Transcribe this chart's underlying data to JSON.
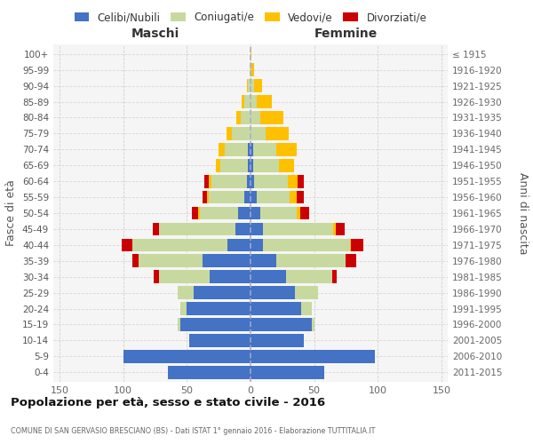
{
  "age_groups": [
    "0-4",
    "5-9",
    "10-14",
    "15-19",
    "20-24",
    "25-29",
    "30-34",
    "35-39",
    "40-44",
    "45-49",
    "50-54",
    "55-59",
    "60-64",
    "65-69",
    "70-74",
    "75-79",
    "80-84",
    "85-89",
    "90-94",
    "95-99",
    "100+"
  ],
  "birth_years": [
    "2011-2015",
    "2006-2010",
    "2001-2005",
    "1996-2000",
    "1991-1995",
    "1986-1990",
    "1981-1985",
    "1976-1980",
    "1971-1975",
    "1966-1970",
    "1961-1965",
    "1956-1960",
    "1951-1955",
    "1946-1950",
    "1941-1945",
    "1936-1940",
    "1931-1935",
    "1926-1930",
    "1921-1925",
    "1916-1920",
    "≤ 1915"
  ],
  "maschi": {
    "celibi": [
      65,
      100,
      48,
      55,
      50,
      45,
      32,
      38,
      18,
      12,
      10,
      5,
      3,
      2,
      2,
      0,
      0,
      0,
      0,
      0,
      0
    ],
    "coniugati": [
      0,
      0,
      0,
      2,
      5,
      12,
      40,
      50,
      75,
      60,
      30,
      28,
      28,
      22,
      18,
      15,
      8,
      5,
      2,
      1,
      0
    ],
    "vedovi": [
      0,
      0,
      0,
      0,
      0,
      0,
      0,
      0,
      0,
      0,
      1,
      1,
      2,
      3,
      5,
      4,
      3,
      2,
      1,
      0,
      0
    ],
    "divorziati": [
      0,
      0,
      0,
      0,
      0,
      0,
      4,
      5,
      8,
      5,
      5,
      4,
      3,
      0,
      0,
      0,
      0,
      0,
      0,
      0,
      0
    ]
  },
  "femmine": {
    "nubili": [
      58,
      98,
      42,
      48,
      40,
      35,
      28,
      20,
      10,
      10,
      8,
      5,
      3,
      2,
      2,
      0,
      0,
      0,
      0,
      0,
      0
    ],
    "coniugate": [
      0,
      0,
      0,
      2,
      8,
      18,
      36,
      55,
      68,
      55,
      28,
      26,
      26,
      20,
      18,
      12,
      8,
      5,
      3,
      1,
      0
    ],
    "vedove": [
      0,
      0,
      0,
      0,
      0,
      0,
      0,
      0,
      1,
      2,
      3,
      5,
      8,
      12,
      16,
      18,
      18,
      12,
      6,
      2,
      1
    ],
    "divorziate": [
      0,
      0,
      0,
      0,
      0,
      0,
      4,
      8,
      10,
      7,
      7,
      6,
      5,
      0,
      0,
      0,
      0,
      0,
      0,
      0,
      0
    ]
  },
  "colors": {
    "celibi_nubili": "#4472c4",
    "coniugati": "#c8d9a0",
    "vedovi": "#ffc000",
    "divorziati": "#cc0000"
  },
  "title": "Popolazione per età, sesso e stato civile - 2016",
  "subtitle": "COMUNE DI SAN GERVASIO BRESCIANO (BS) - Dati ISTAT 1° gennaio 2016 - Elaborazione TUTTITALIA.IT",
  "ylabel_left": "Fasce di età",
  "ylabel_right": "Anni di nascita",
  "xlabel_left": "Maschi",
  "xlabel_right": "Femmine",
  "xlim": 155,
  "legend_labels": [
    "Celibi/Nubili",
    "Coniugati/e",
    "Vedovi/e",
    "Divorziati/e"
  ]
}
